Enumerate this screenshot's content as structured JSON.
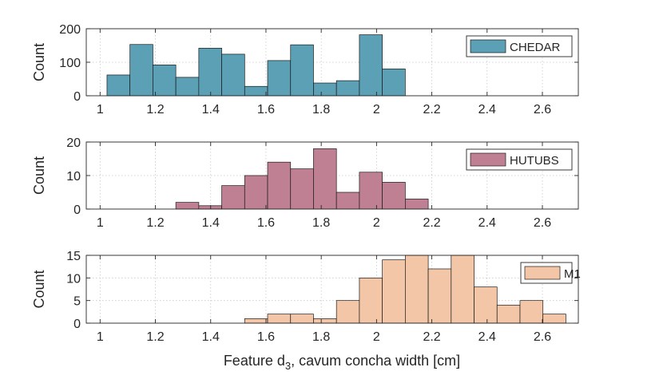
{
  "chart_data": [
    {
      "type": "bar",
      "title": "",
      "xlabel": "",
      "ylabel": "Count",
      "xlim": [
        0.95,
        2.73
      ],
      "ylim": [
        0,
        200
      ],
      "yticks": [
        0,
        100,
        200
      ],
      "xticks": [
        "1",
        "1.2",
        "1.4",
        "1.6",
        "1.8",
        "2",
        "2.2",
        "2.4",
        "2.6"
      ],
      "bin_edges": [
        1.025,
        1.108,
        1.191,
        1.274,
        1.357,
        1.44,
        1.523,
        1.606,
        1.689,
        1.772,
        1.855,
        1.938,
        2.021,
        2.104
      ],
      "series": [
        {
          "name": "CHEDAR",
          "values": [
            62,
            153,
            92,
            55,
            142,
            124,
            28,
            105,
            152,
            38,
            45,
            182,
            80
          ],
          "color": "#5ba0b5"
        }
      ],
      "legend": "top-right",
      "grid": true
    },
    {
      "type": "bar",
      "title": "",
      "xlabel": "",
      "ylabel": "Count",
      "xlim": [
        0.95,
        2.73
      ],
      "ylim": [
        0,
        20
      ],
      "yticks": [
        0,
        10,
        20
      ],
      "xticks": [
        "1",
        "1.2",
        "1.4",
        "1.6",
        "1.8",
        "2",
        "2.2",
        "2.4",
        "2.6"
      ],
      "bin_edges": [
        1.274,
        1.357,
        1.44,
        1.523,
        1.606,
        1.689,
        1.772,
        1.855,
        1.938,
        2.021,
        2.104,
        2.187
      ],
      "series": [
        {
          "name": "HUTUBS",
          "values": [
            2,
            1,
            7,
            10,
            14,
            12,
            18,
            5,
            11,
            8,
            3
          ],
          "color": "#bf8093"
        }
      ],
      "legend": "top-right",
      "grid": true
    },
    {
      "type": "bar",
      "title": "",
      "xlabel": "Feature d",
      "xlabel_sub": "3",
      "xlabel_rest": ", cavum concha width [cm]",
      "ylabel": "Count",
      "xlim": [
        0.95,
        2.73
      ],
      "ylim": [
        0,
        15
      ],
      "yticks": [
        0,
        5,
        10,
        15
      ],
      "xticks": [
        "1",
        "1.2",
        "1.4",
        "1.6",
        "1.8",
        "2",
        "2.2",
        "2.4",
        "2.6"
      ],
      "bin_edges": [
        1.523,
        1.606,
        1.689,
        1.772,
        1.855,
        1.938,
        2.021,
        2.104,
        2.187,
        2.27,
        2.353,
        2.436,
        2.519,
        2.602,
        2.685
      ],
      "series": [
        {
          "name": "M1",
          "values": [
            1,
            2,
            2,
            1,
            5,
            10,
            14,
            15,
            12,
            15,
            8,
            4,
            5,
            2
          ],
          "color": "#f2c6a6"
        }
      ],
      "legend": "top-right",
      "grid": true
    }
  ]
}
